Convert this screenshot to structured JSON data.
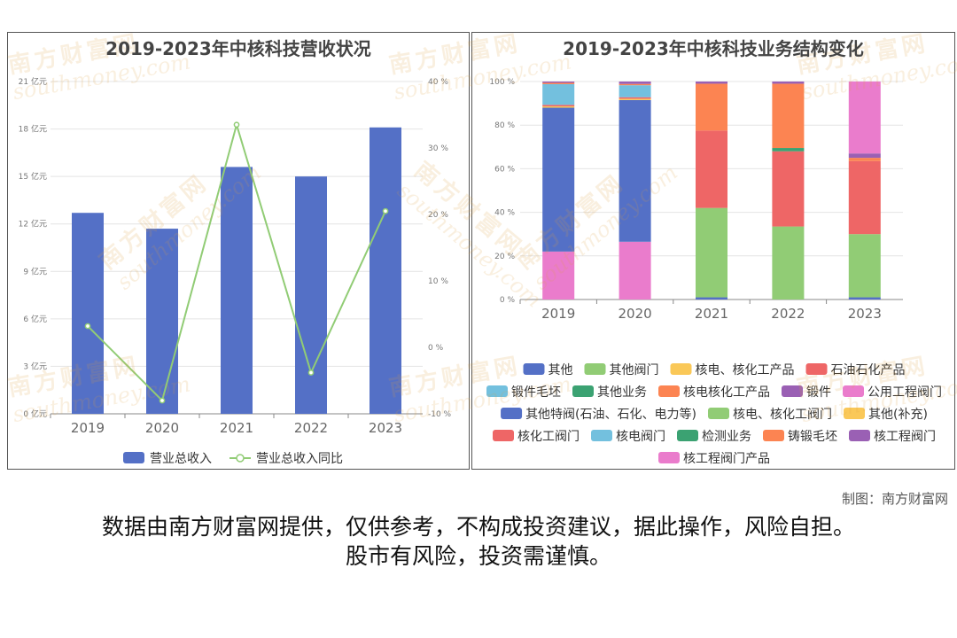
{
  "credit": "制图：南方财富网",
  "disclaimer": {
    "line1": "数据由南方财富网提供，仅供参考，不构成投资建议，据此操作，风险自担。",
    "line2": "股市有风险，投资需谨慎。"
  },
  "watermark": {
    "cn": "南方财富网",
    "en": "southmoney.com"
  },
  "colors": {
    "bar": "#5470c6",
    "line": "#91cc75"
  },
  "chart_data": [
    {
      "type": "bar",
      "title": "2019-2023年中核科技营收状况",
      "categories": [
        "2019",
        "2020",
        "2021",
        "2022",
        "2023"
      ],
      "left_axis": {
        "ylim": [
          0,
          21
        ],
        "ticks": [
          "0 亿元",
          "3 亿元",
          "6 亿元",
          "9 亿元",
          "12 亿元",
          "15 亿元",
          "18 亿元",
          "21 亿元"
        ]
      },
      "right_axis": {
        "ylim": [
          -10,
          40
        ],
        "ticks": [
          "-10 %",
          "0 %",
          "10 %",
          "20 %",
          "30 %",
          "40 %"
        ]
      },
      "series": [
        {
          "name": "营业总收入",
          "type": "bar",
          "axis": "left",
          "values": [
            12.7,
            11.7,
            15.6,
            15.0,
            18.1
          ]
        },
        {
          "name": "营业总收入同比",
          "type": "line",
          "axis": "right",
          "values": [
            3.2,
            -8.0,
            33.5,
            -3.8,
            20.5
          ]
        }
      ],
      "legend_position": "bottom"
    },
    {
      "type": "bar",
      "stacked": true,
      "title": "2019-2023年中核科技业务结构变化",
      "categories": [
        "2019",
        "2020",
        "2021",
        "2022",
        "2023"
      ],
      "ylim": [
        0,
        100
      ],
      "yticks": [
        "0 %",
        "20 %",
        "40 %",
        "60 %",
        "80 %",
        "100 %"
      ],
      "legend_position": "bottom",
      "series": [
        {
          "name": "其他",
          "color": "#5470c6",
          "values": [
            0,
            0,
            1,
            0,
            1
          ]
        },
        {
          "name": "其他阀门",
          "color": "#91cc75",
          "values": [
            0,
            0,
            0,
            0,
            0
          ]
        },
        {
          "name": "核电、核化工产品",
          "color": "#fac858",
          "values": [
            0,
            0,
            0,
            0,
            0
          ]
        },
        {
          "name": "石油石化产品",
          "color": "#ee6666",
          "values": [
            0,
            0,
            0,
            0,
            0
          ]
        },
        {
          "name": "锻件毛坯",
          "color": "#73c0de",
          "values": [
            0,
            0,
            0,
            0,
            0
          ]
        },
        {
          "name": "其他业务",
          "color": "#3ba272",
          "values": [
            0,
            0,
            0,
            0,
            0
          ]
        },
        {
          "name": "核电核化工产品",
          "color": "#fc8452",
          "values": [
            0,
            0,
            0,
            0,
            0
          ]
        },
        {
          "name": "锻件",
          "color": "#9a60b4",
          "values": [
            0,
            0,
            0,
            0,
            0
          ]
        },
        {
          "name": "公用工程阀门",
          "color": "#ea7ccc",
          "values": [
            22,
            26.5,
            0,
            0,
            0
          ]
        },
        {
          "name": "其他特阀(石油、石化、电力等)",
          "color": "#5470c6",
          "values": [
            66,
            65,
            0,
            0,
            0
          ]
        },
        {
          "name": "核电、核化工阀门",
          "color": "#91cc75",
          "values": [
            0,
            0,
            41,
            33.5,
            29
          ]
        },
        {
          "name": "其他(补充)",
          "color": "#fac858",
          "values": [
            0.6,
            0.6,
            0,
            0,
            0
          ]
        },
        {
          "name": "核化工阀门",
          "color": "#ee6666",
          "values": [
            0.7,
            0.7,
            35.5,
            34.5,
            33.5
          ]
        },
        {
          "name": "核电阀门",
          "color": "#73c0de",
          "values": [
            9.5,
            5.5,
            0,
            0,
            0
          ]
        },
        {
          "name": "检测业务",
          "color": "#3ba272",
          "values": [
            0,
            0,
            0,
            1.5,
            0
          ]
        },
        {
          "name": "铸锻毛坯",
          "color": "#fc8452",
          "values": [
            0.6,
            0.6,
            21.5,
            29.5,
            1.5
          ]
        },
        {
          "name": "核工程阀门",
          "color": "#9a60b4",
          "values": [
            0.6,
            1.1,
            1,
            1,
            2
          ]
        },
        {
          "name": "核工程阀门产品",
          "color": "#ea7ccc",
          "values": [
            0,
            0,
            0,
            0,
            33
          ]
        }
      ]
    }
  ]
}
